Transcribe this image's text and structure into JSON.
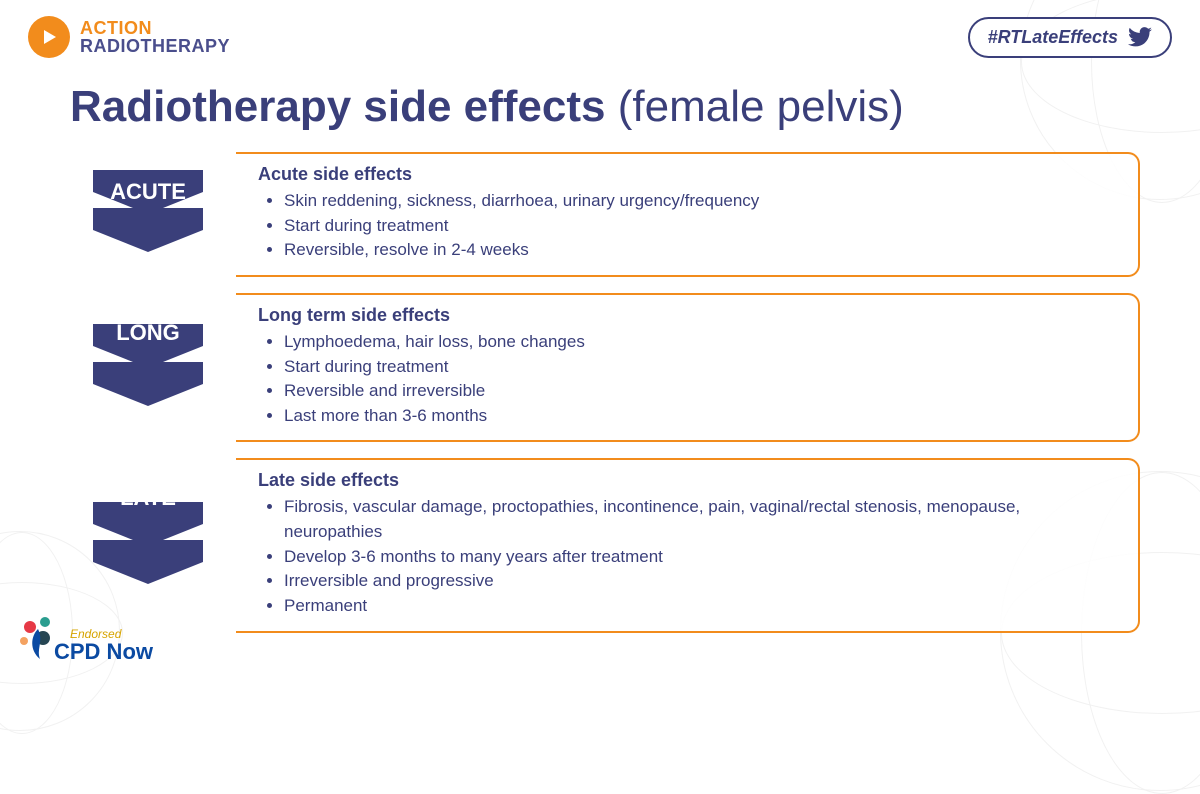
{
  "colors": {
    "purple": "#3a3f7a",
    "orange": "#f28c1c",
    "twitter": "#3a3f7a",
    "bg": "#ffffff",
    "sphere_line": "#e8e8e8",
    "text": "#3a3f7a",
    "cpd_blue": "#0b4aa2",
    "cpd_gold": "#d6a400"
  },
  "header": {
    "logo_line1": "ACTION",
    "logo_line2": "RADIOTHERAPY",
    "hashtag": "#RTLateEffects"
  },
  "title": {
    "bold": "Radiotherapy side effects",
    "light": " (female pelvis)"
  },
  "sections": [
    {
      "chev_label": "ACUTE",
      "chev_count": 2,
      "card_title": "Acute side effects",
      "bullets": [
        "Skin reddening, sickness, diarrhoea, urinary urgency/frequency",
        "Start during treatment",
        "Reversible, resolve in 2-4 weeks"
      ]
    },
    {
      "chev_label": "LONG",
      "chev_count": 2,
      "card_title": "Long term side effects",
      "bullets": [
        "Lymphoedema, hair loss, bone changes",
        "Start during treatment",
        "Reversible and irreversible",
        "Last more than 3-6 months"
      ]
    },
    {
      "chev_label": "LATE",
      "chev_count": 2,
      "card_title": "Late side effects",
      "bullets": [
        "Fibrosis, vascular damage, proctopathies, incontinence, pain, vaginal/rectal stenosis, menopause, neuropathies",
        "Develop 3-6 months to many years after treatment",
        "Irreversible and progressive",
        "Permanent"
      ]
    }
  ],
  "cpd": {
    "main": "CPD Now",
    "endorsed": "Endorsed"
  }
}
